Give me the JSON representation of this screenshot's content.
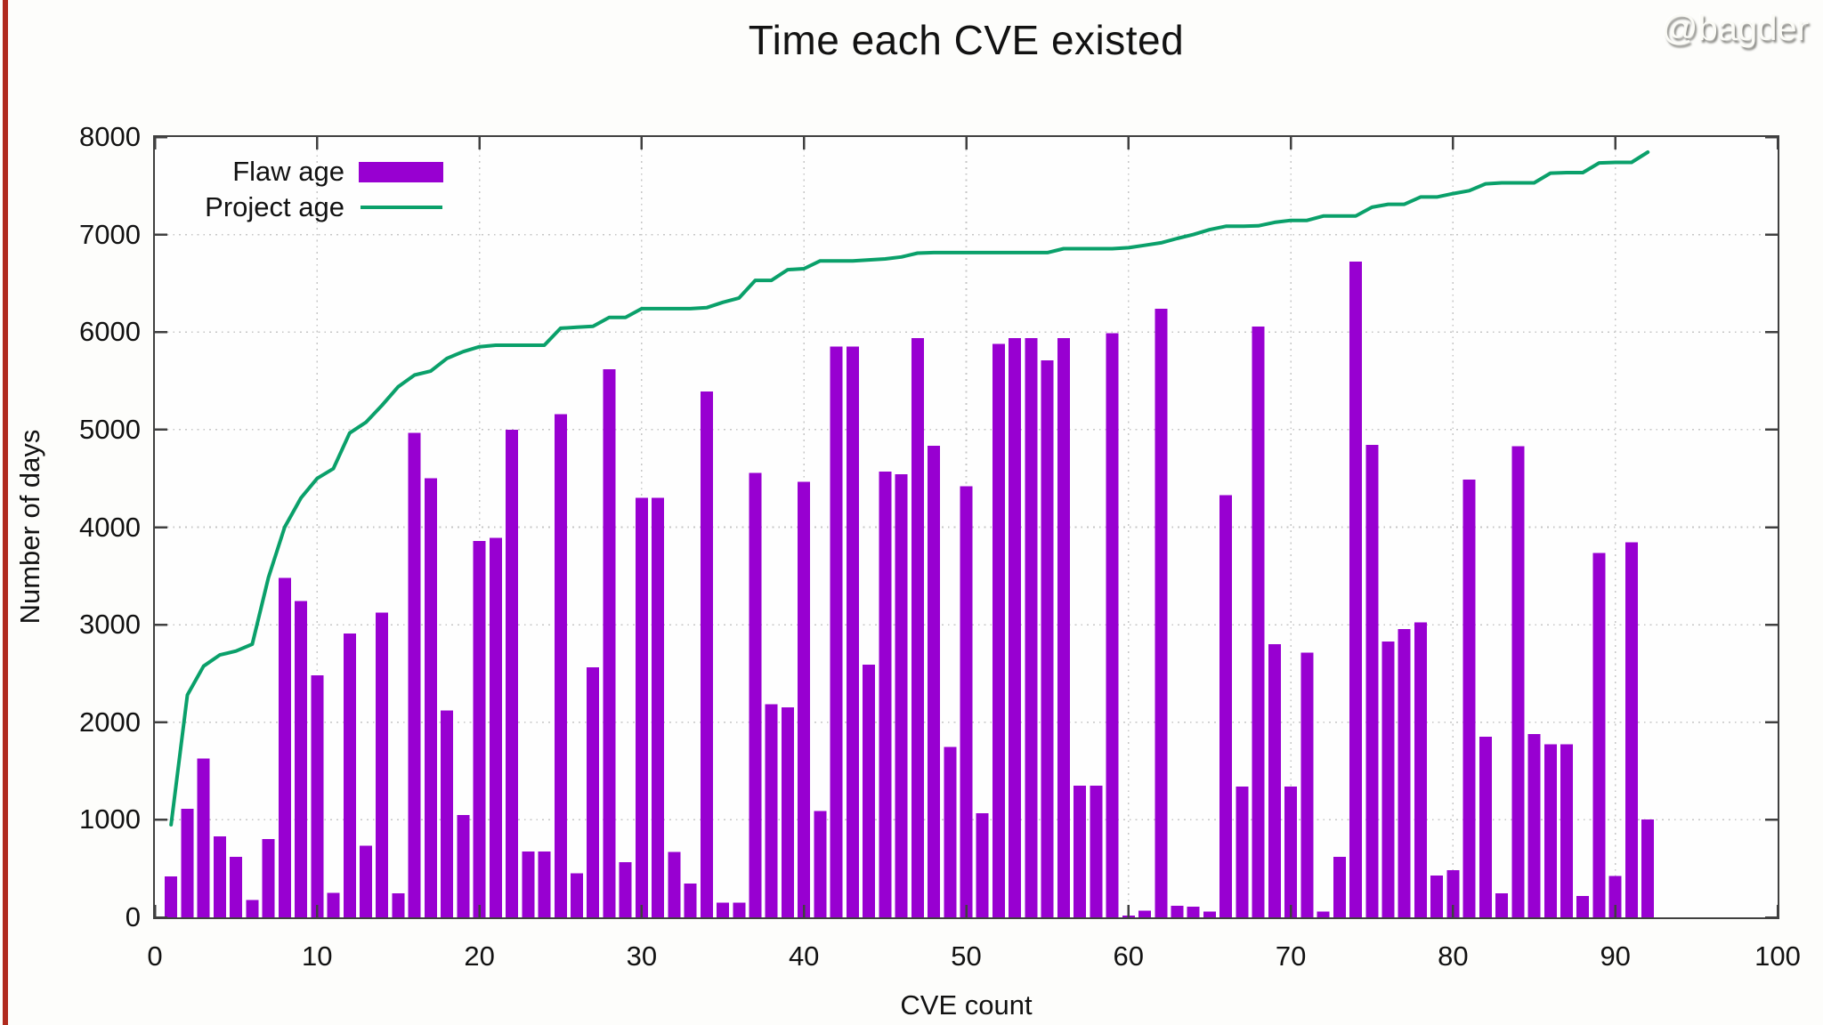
{
  "page": {
    "title": "Time each CVE existed",
    "watermark": "@bagder"
  },
  "chart_data": {
    "type": "bar+line",
    "title": "Time each CVE existed",
    "xlabel": "CVE count",
    "ylabel": "Number of days",
    "xlim": [
      0,
      100
    ],
    "ylim": [
      0,
      8000
    ],
    "x_ticks": [
      0,
      10,
      20,
      30,
      40,
      50,
      60,
      70,
      80,
      90,
      100
    ],
    "y_ticks": [
      0,
      1000,
      2000,
      3000,
      4000,
      5000,
      6000,
      7000,
      8000
    ],
    "grid": "dotted",
    "legend_position": "top-left-inside",
    "cve_index_start": 1,
    "series": [
      {
        "name": "Flaw age",
        "type": "bar",
        "color": "#9800d1",
        "values": [
          420,
          1115,
          1630,
          830,
          620,
          180,
          805,
          3480,
          3245,
          2480,
          250,
          2910,
          735,
          3125,
          245,
          4965,
          4500,
          2120,
          1050,
          3860,
          3890,
          5000,
          675,
          675,
          5160,
          450,
          2565,
          5620,
          565,
          4300,
          4300,
          670,
          345,
          5390,
          150,
          150,
          4555,
          2185,
          2155,
          4465,
          1090,
          5850,
          5850,
          2590,
          4570,
          4545,
          5940,
          4835,
          1745,
          4420,
          1065,
          5880,
          5940,
          5940,
          5710,
          5940,
          1350,
          1350,
          5990,
          20,
          70,
          6240,
          120,
          110,
          60,
          4330,
          1340,
          6055,
          2800,
          1340,
          2715,
          60,
          620,
          6725,
          4845,
          2830,
          2955,
          3025,
          430,
          485,
          4490,
          1850,
          245,
          4830,
          1880,
          1775,
          1775,
          220,
          3735,
          425,
          3845,
          1005
        ]
      },
      {
        "name": "Project age",
        "type": "line",
        "color": "#0aa06a",
        "values": [
          950,
          2280,
          2575,
          2690,
          2730,
          2800,
          3485,
          4000,
          4300,
          4500,
          4600,
          4965,
          5075,
          5250,
          5440,
          5560,
          5600,
          5730,
          5800,
          5850,
          5865,
          5865,
          5865,
          5865,
          6040,
          6050,
          6060,
          6150,
          6150,
          6240,
          6240,
          6240,
          6240,
          6250,
          6305,
          6350,
          6530,
          6530,
          6640,
          6650,
          6730,
          6730,
          6730,
          6740,
          6750,
          6770,
          6810,
          6815,
          6815,
          6815,
          6815,
          6815,
          6815,
          6815,
          6815,
          6855,
          6855,
          6855,
          6855,
          6865,
          6890,
          6915,
          6960,
          7000,
          7050,
          7085,
          7085,
          7090,
          7125,
          7145,
          7145,
          7190,
          7190,
          7190,
          7280,
          7310,
          7310,
          7385,
          7385,
          7420,
          7450,
          7520,
          7530,
          7530,
          7530,
          7630,
          7635,
          7635,
          7735,
          7740,
          7740,
          7845
        ]
      }
    ],
    "colors": {
      "bar": "#9800d1",
      "line": "#0aa06a",
      "axis": "#404040",
      "grid": "#c6c6c6",
      "accent_strip": "#b02a1e"
    }
  }
}
